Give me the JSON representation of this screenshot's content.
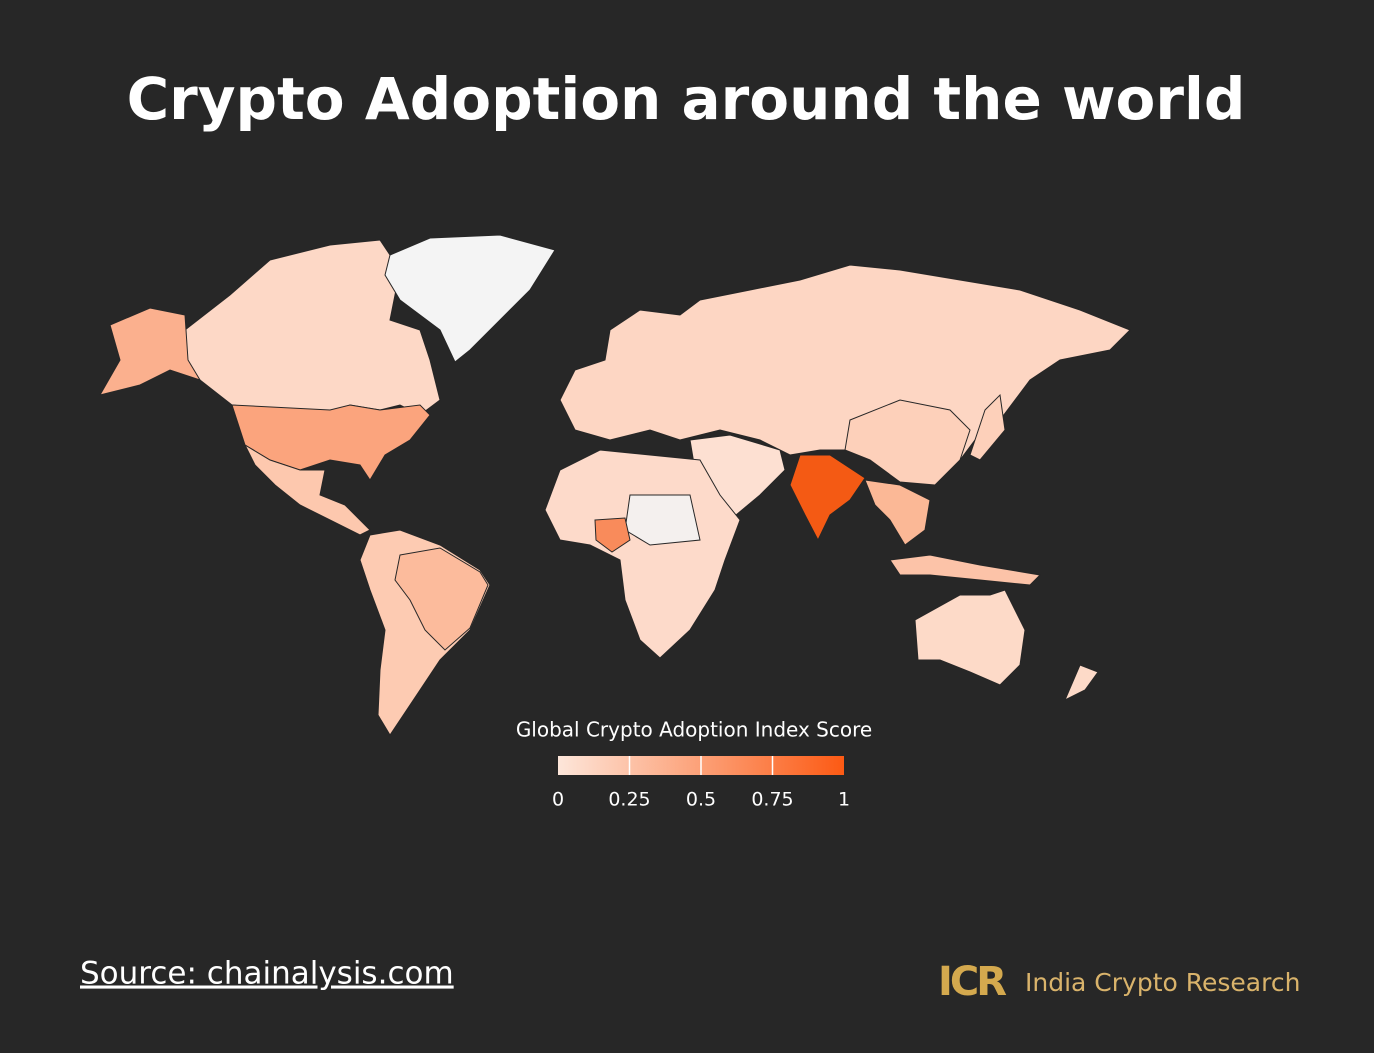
{
  "title": "Crypto Adoption around the world",
  "legend": {
    "title": "Global Crypto Adoption Index Score",
    "ticks": [
      0,
      0.25,
      0.5,
      0.75,
      1
    ],
    "colors": [
      "#fde6da",
      "#fc5a14"
    ]
  },
  "footer": {
    "source": "Source: chainalysis.com",
    "logo_mark": "ICR",
    "brand": "India Crypto Research"
  }
}
